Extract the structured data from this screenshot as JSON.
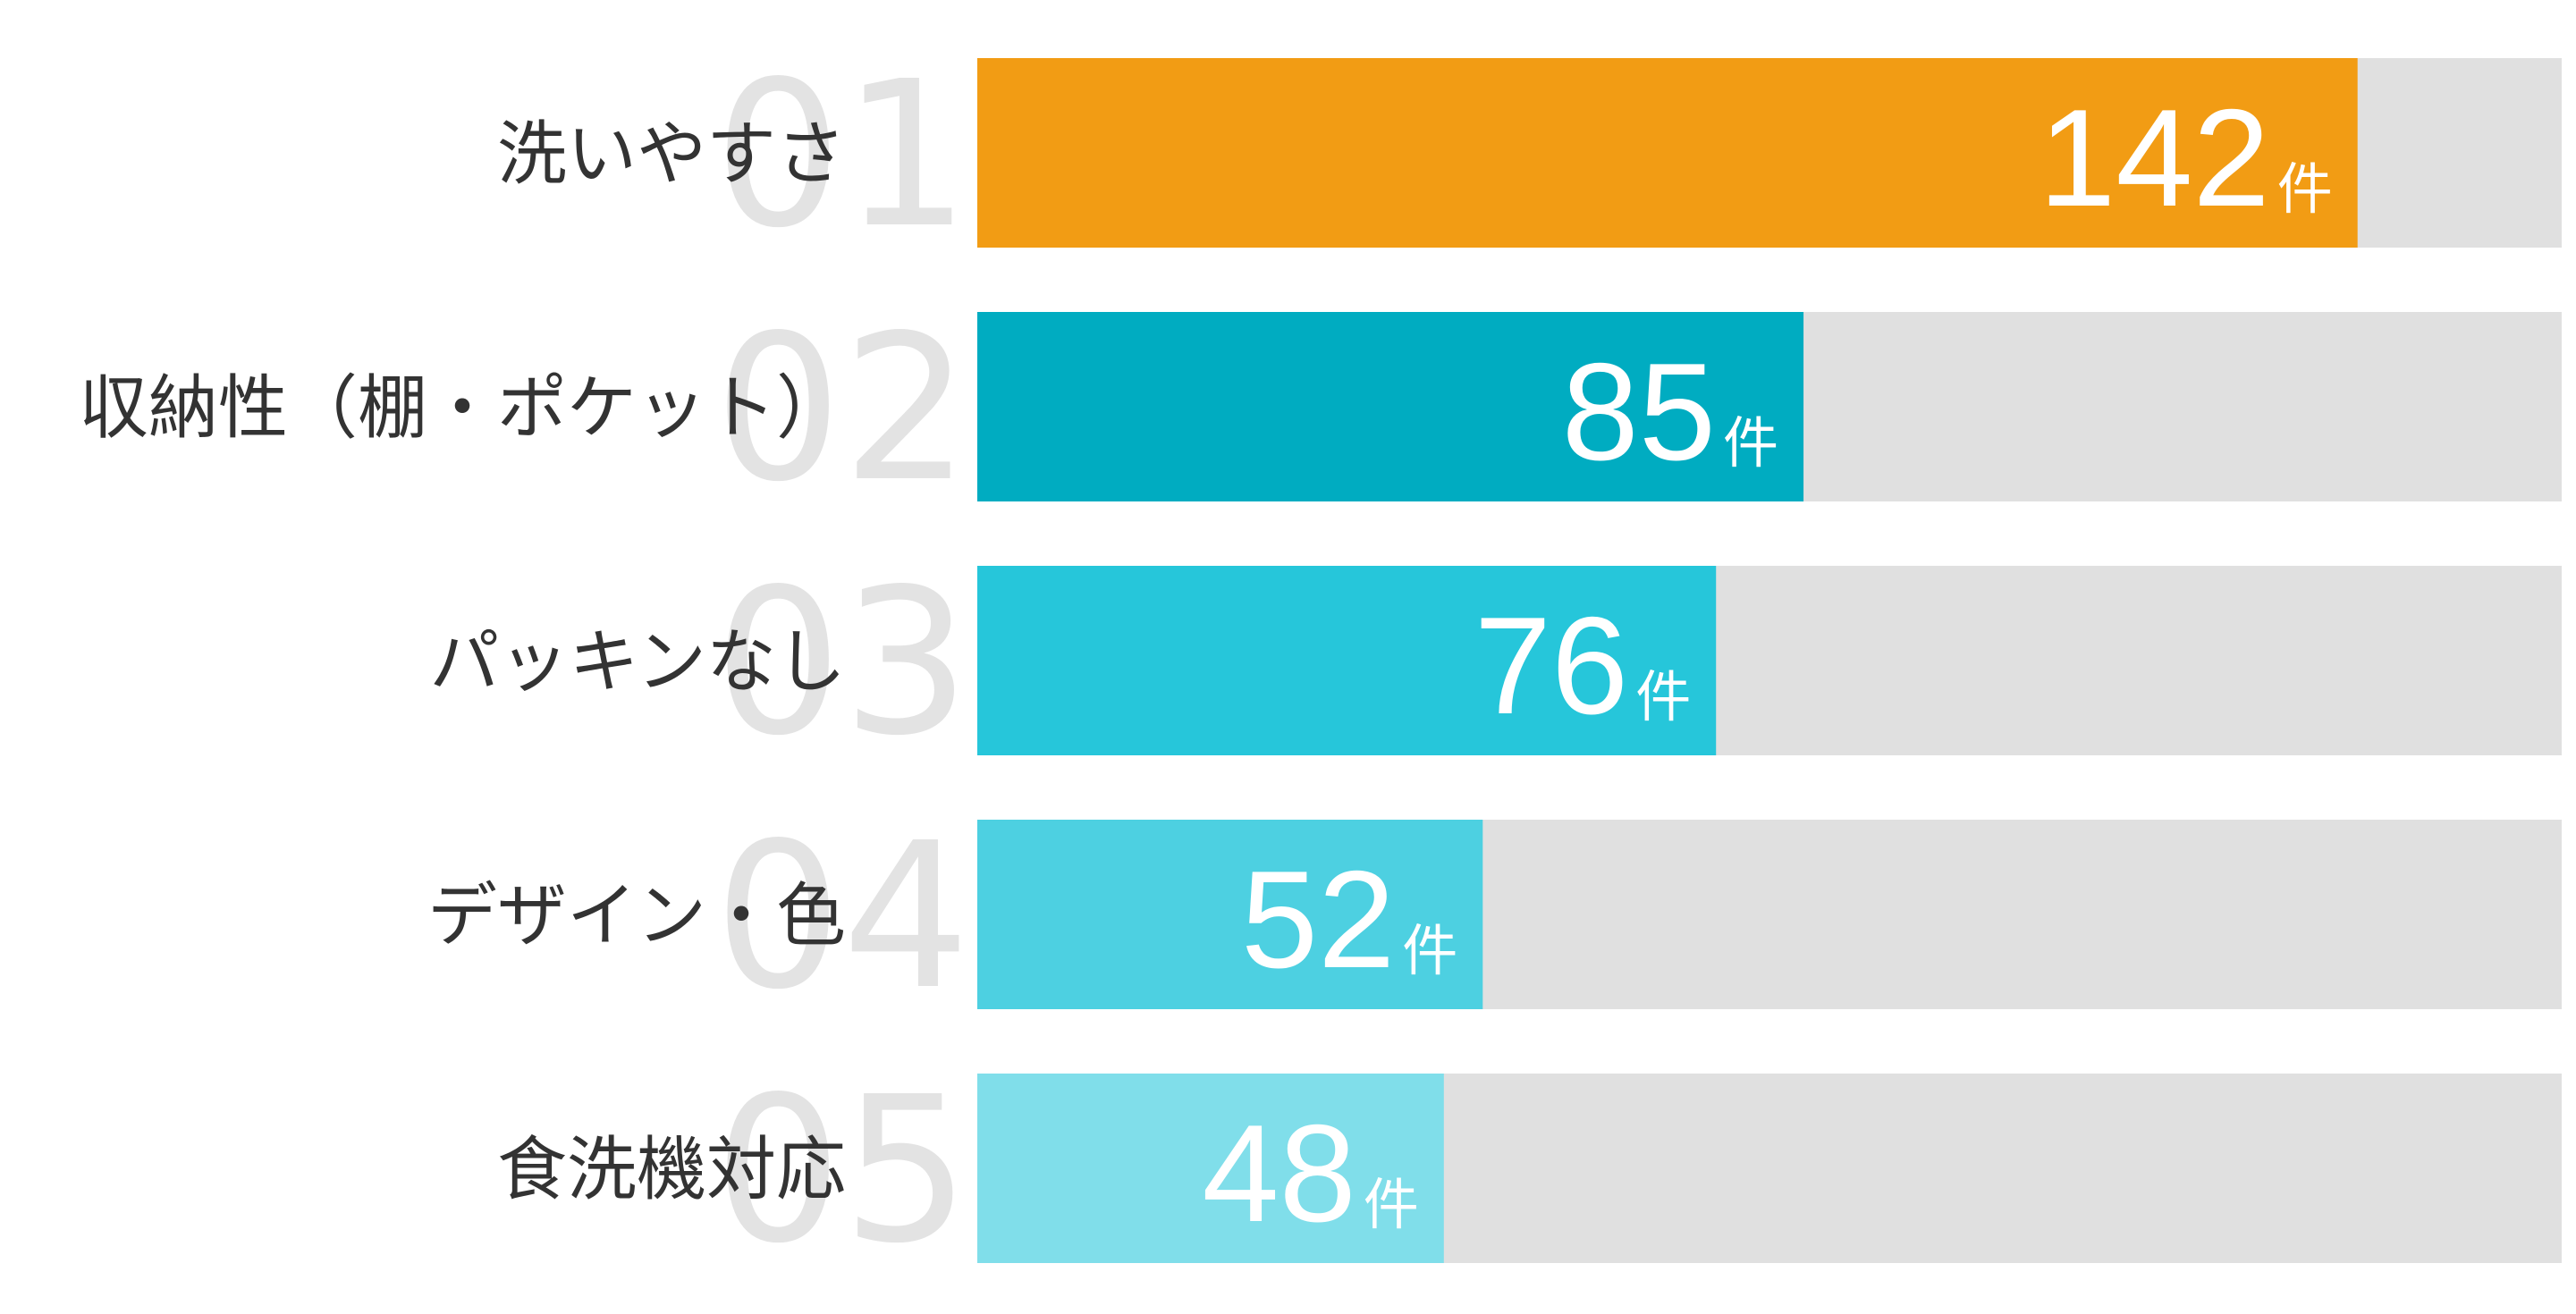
{
  "chart_data": {
    "type": "ranked-bar",
    "ranks": [
      "01",
      "02",
      "03",
      "04",
      "05"
    ],
    "categories": [
      "洗いやすさ",
      "収納性（棚・ポケット）",
      "パッキンなし",
      "デザイン・色",
      "食洗機対応"
    ],
    "values": [
      142,
      85,
      76,
      52,
      48
    ],
    "unit": "件",
    "colors": [
      "#f29c14",
      "#00acc1",
      "#26c6da",
      "#4dd0e1",
      "#80deea"
    ],
    "track_color": "#e0e0e0",
    "xlim": [
      0,
      163
    ]
  }
}
